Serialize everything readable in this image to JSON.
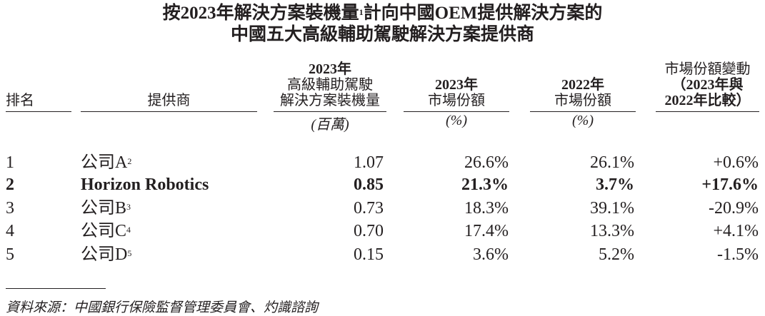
{
  "title": {
    "line1": "按2023年解決方案裝機量",
    "note": "1",
    "line1_rest": "計向中國OEM提供解決方案的",
    "line2": "中國五大高級輔助駕駛解決方案提供商"
  },
  "table": {
    "headers": [
      [
        "排名"
      ],
      [
        "提供商"
      ],
      [
        "2023年",
        "高級輔助駕駛",
        "解決方案裝機量"
      ],
      [
        "2023年",
        "市場份額"
      ],
      [
        "2022年",
        "市場份額"
      ],
      [
        "市場份額變動",
        "（2023年與",
        "2022年比較）"
      ]
    ],
    "units": [
      "(百萬)",
      "(%)",
      "(%)"
    ],
    "rows": [
      {
        "rank": "1",
        "provider": "公司A",
        "note": "2",
        "values": [
          "1.07",
          "26.6%",
          "26.1%",
          "+0.6%"
        ]
      },
      {
        "rank": "2",
        "provider": "Horizon Robotics",
        "highlighted": true,
        "values": [
          "0.85",
          "21.3%",
          "3.7%",
          "+17.6%"
        ]
      },
      {
        "rank": "3",
        "provider": "公司B",
        "note": "3",
        "values": [
          "0.73",
          "18.3%",
          "39.1%",
          "-20.9%"
        ]
      },
      {
        "rank": "4",
        "provider": "公司C",
        "note": "4",
        "values": [
          "0.70",
          "17.4%",
          "13.3%",
          "+4.1%"
        ]
      },
      {
        "rank": "5",
        "provider": "公司D",
        "note": "5",
        "values": [
          "0.15",
          "3.6%",
          "5.2%",
          "-1.5%"
        ]
      }
    ]
  },
  "source": "資料來源：中國銀行保險監督管理委員會、灼識諮詢"
}
